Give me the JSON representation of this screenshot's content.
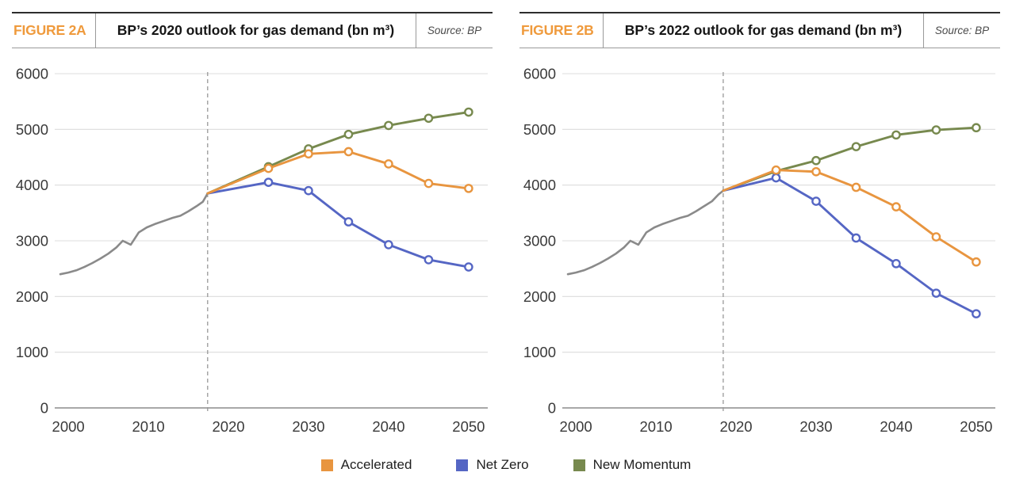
{
  "figures": [
    {
      "label": "FIGURE 2A",
      "title": "BP’s 2020 outlook for gas demand (bn m³)",
      "source": "Source: BP",
      "chart_data": {
        "type": "line",
        "title": "BP’s 2020 outlook for gas demand (bn m³)",
        "xlabel": "",
        "ylabel": "",
        "xlim": [
          1998.6,
          2051.3
        ],
        "ylim": [
          0,
          6000
        ],
        "x_ticks": [
          2000,
          2010,
          2020,
          2030,
          2040,
          2050
        ],
        "y_ticks": [
          0,
          1000,
          2000,
          3000,
          4000,
          5000,
          6000
        ],
        "grid": "horizontal",
        "forecast_divider": {
          "year": 2017.4,
          "style": "dashed",
          "color": "#999999"
        },
        "history": {
          "name": "Historical",
          "color": "#8a8a8a",
          "x": [
            1999,
            2000,
            2001,
            2002,
            2003,
            2004,
            2005,
            2006,
            2006.8,
            2007.8,
            2008.8,
            2009.8,
            2010.8,
            2012,
            2013,
            2014,
            2015,
            2016,
            2016.8,
            2017.4
          ],
          "y": [
            2400,
            2430,
            2470,
            2530,
            2600,
            2680,
            2770,
            2880,
            3000,
            2930,
            3150,
            3240,
            3300,
            3360,
            3410,
            3450,
            3530,
            3620,
            3700,
            3850
          ]
        },
        "series": [
          {
            "name": "New Momentum",
            "color": "#77894e",
            "x": [
              2017.4,
              2025,
              2030,
              2035,
              2040,
              2045,
              2050
            ],
            "y": [
              3850,
              4330,
              4650,
              4910,
              5070,
              5200,
              5310
            ]
          },
          {
            "name": "Net Zero",
            "color": "#5566c4",
            "x": [
              2017.4,
              2025,
              2030,
              2035,
              2040,
              2045,
              2050
            ],
            "y": [
              3850,
              4050,
              3900,
              3340,
              2930,
              2660,
              2530
            ]
          },
          {
            "name": "Accelerated",
            "color": "#e8953f",
            "x": [
              2017.4,
              2025,
              2030,
              2035,
              2040,
              2045,
              2050
            ],
            "y": [
              3850,
              4300,
              4560,
              4600,
              4380,
              4030,
              3940
            ]
          }
        ]
      }
    },
    {
      "label": "FIGURE 2B",
      "title": "BP’s 2022 outlook for gas demand (bn m³)",
      "source": "Source: BP",
      "chart_data": {
        "type": "line",
        "title": "BP’s 2022 outlook for gas demand (bn m³)",
        "xlabel": "",
        "ylabel": "",
        "xlim": [
          1998.6,
          2051.3
        ],
        "ylim": [
          0,
          6000
        ],
        "x_ticks": [
          2000,
          2010,
          2020,
          2030,
          2040,
          2050
        ],
        "y_ticks": [
          0,
          1000,
          2000,
          3000,
          4000,
          5000,
          6000
        ],
        "grid": "horizontal",
        "forecast_divider": {
          "year": 2018.4,
          "style": "dashed",
          "color": "#999999"
        },
        "history": {
          "name": "Historical",
          "color": "#8a8a8a",
          "x": [
            1999,
            2000,
            2001,
            2002,
            2003,
            2004,
            2005,
            2006,
            2006.8,
            2007.8,
            2008.8,
            2009.8,
            2010.8,
            2012,
            2013,
            2014,
            2015,
            2016,
            2017,
            2017.8,
            2018.4
          ],
          "y": [
            2400,
            2430,
            2470,
            2530,
            2600,
            2680,
            2770,
            2880,
            3000,
            2930,
            3150,
            3240,
            3300,
            3360,
            3410,
            3450,
            3530,
            3620,
            3710,
            3830,
            3900
          ]
        },
        "series": [
          {
            "name": "New Momentum",
            "color": "#77894e",
            "x": [
              2018.4,
              2025,
              2030,
              2035,
              2040,
              2045,
              2050
            ],
            "y": [
              3900,
              4250,
              4440,
              4690,
              4900,
              4990,
              5030
            ]
          },
          {
            "name": "Net Zero",
            "color": "#5566c4",
            "x": [
              2018.4,
              2025,
              2030,
              2035,
              2040,
              2045,
              2050
            ],
            "y": [
              3900,
              4130,
              3710,
              3050,
              2590,
              2060,
              1690
            ]
          },
          {
            "name": "Accelerated",
            "color": "#e8953f",
            "x": [
              2018.4,
              2025,
              2030,
              2035,
              2040,
              2045,
              2050
            ],
            "y": [
              3900,
              4270,
              4240,
              3960,
              3610,
              3070,
              2620
            ]
          }
        ]
      }
    }
  ],
  "legend": {
    "items": [
      {
        "label": "Accelerated",
        "color": "#e8953f"
      },
      {
        "label": "Net Zero",
        "color": "#5566c4"
      },
      {
        "label": "New Momentum",
        "color": "#77894e"
      }
    ]
  },
  "style": {
    "gridline_color": "#dcdcdc",
    "axis_line_color": "#a8a8a8",
    "tick_label_color": "#3a3a3a",
    "figure_label_color": "#ef9a3c"
  }
}
